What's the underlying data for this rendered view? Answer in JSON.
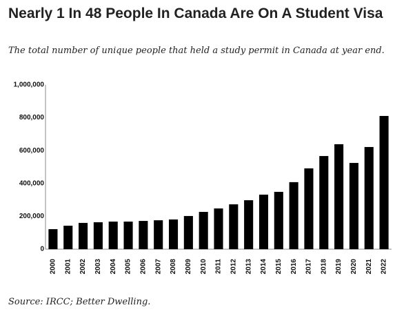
{
  "chart_data": {
    "type": "bar",
    "title": "Nearly 1 In 48 People In Canada Are On A Student Visa",
    "subtitle": "The total number of unique people that held a study permit in Canada at year end.",
    "source": "Source: IRCC; Better Dwelling.",
    "categories": [
      "2000",
      "2001",
      "2002",
      "2003",
      "2004",
      "2005",
      "2006",
      "2007",
      "2008",
      "2009",
      "2010",
      "2011",
      "2012",
      "2013",
      "2014",
      "2015",
      "2016",
      "2017",
      "2018",
      "2019",
      "2020",
      "2021",
      "2022"
    ],
    "values": [
      122000,
      143000,
      160000,
      164000,
      168000,
      168000,
      172000,
      176000,
      181000,
      202000,
      227000,
      248000,
      273000,
      298000,
      332000,
      349000,
      408000,
      492000,
      567000,
      639000,
      525000,
      622000,
      811000
    ],
    "color": "#000000",
    "ylim": [
      0,
      1000000
    ],
    "yticks": [
      0,
      {
        "value": 200000,
        "label": "200,000"
      },
      {
        "value": 400000,
        "label": "400,000"
      },
      {
        "value": 600000,
        "label": "600,000"
      },
      {
        "value": 800000,
        "label": "800,000"
      },
      {
        "value": 1000000,
        "label": "1,000,000"
      }
    ],
    "grid": false
  }
}
